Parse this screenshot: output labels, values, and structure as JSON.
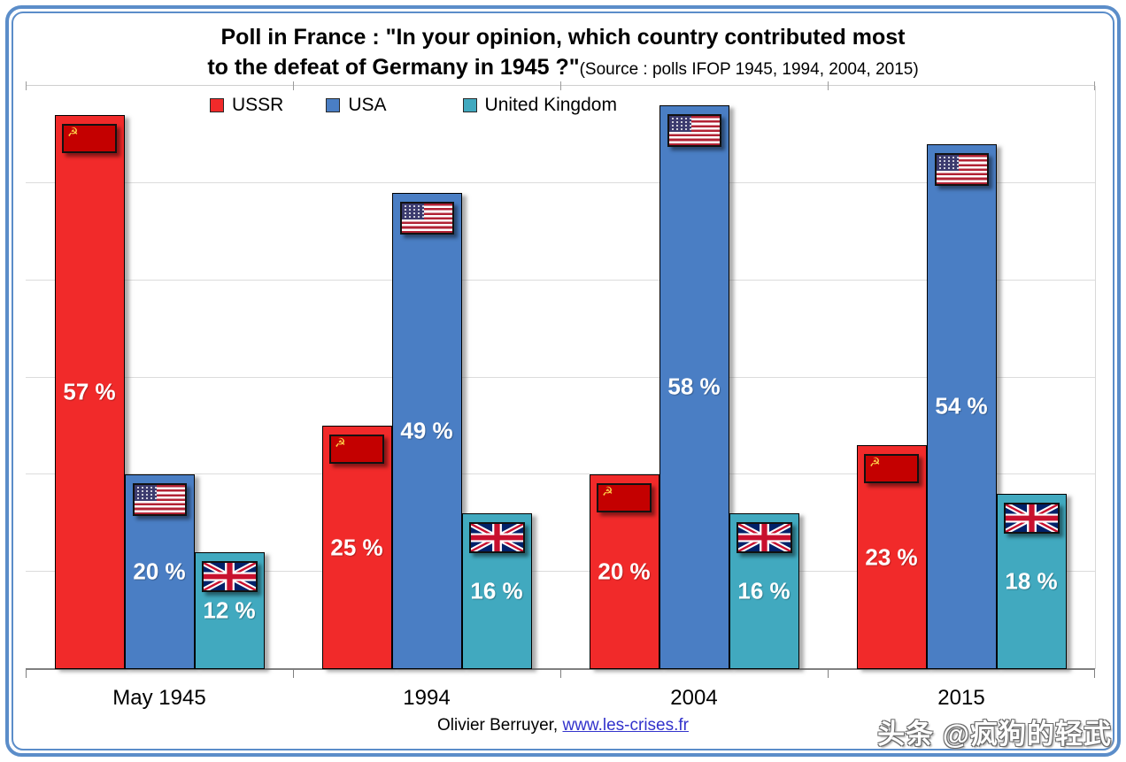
{
  "title": {
    "line1": "Poll in France : \"In your opinion, which country contributed most",
    "line2_main": "to the defeat of Germany in 1945 ?\"",
    "line2_source": "(Source : polls IFOP 1945, 1994, 2004, 2015)"
  },
  "chart_data": {
    "type": "bar",
    "title": "Poll in France : \"In your opinion, which country contributed most to the defeat of Germany in 1945 ?\"",
    "subtitle": "(Source : polls IFOP 1945, 1994, 2004, 2015)",
    "categories": [
      "May 1945",
      "1994",
      "2004",
      "2015"
    ],
    "series": [
      {
        "name": "USSR",
        "color": "#f12a2a",
        "flag": "ussr",
        "values": [
          57,
          25,
          20,
          23
        ]
      },
      {
        "name": "USA",
        "color": "#4a7ec4",
        "flag": "usa",
        "values": [
          20,
          49,
          58,
          54
        ]
      },
      {
        "name": "United Kingdom",
        "color": "#41a9bf",
        "flag": "uk",
        "values": [
          12,
          16,
          16,
          18
        ]
      }
    ],
    "value_suffix": " %",
    "ylim": [
      0,
      60
    ],
    "grid_step": 10,
    "grid": true,
    "legend_position": "top",
    "y_axis_labels_shown": false
  },
  "footer": {
    "author": "Olivier Berruyer, ",
    "link": "www.les-crises.fr"
  },
  "watermark": "头条 @疯狗的轻武",
  "colors": {
    "frame": "#5b8dc9",
    "gridline": "#dcdcdc",
    "axis": "#7f7f7f",
    "ussr_flag_red": "#c40000",
    "link_blue": "#3333cc"
  }
}
